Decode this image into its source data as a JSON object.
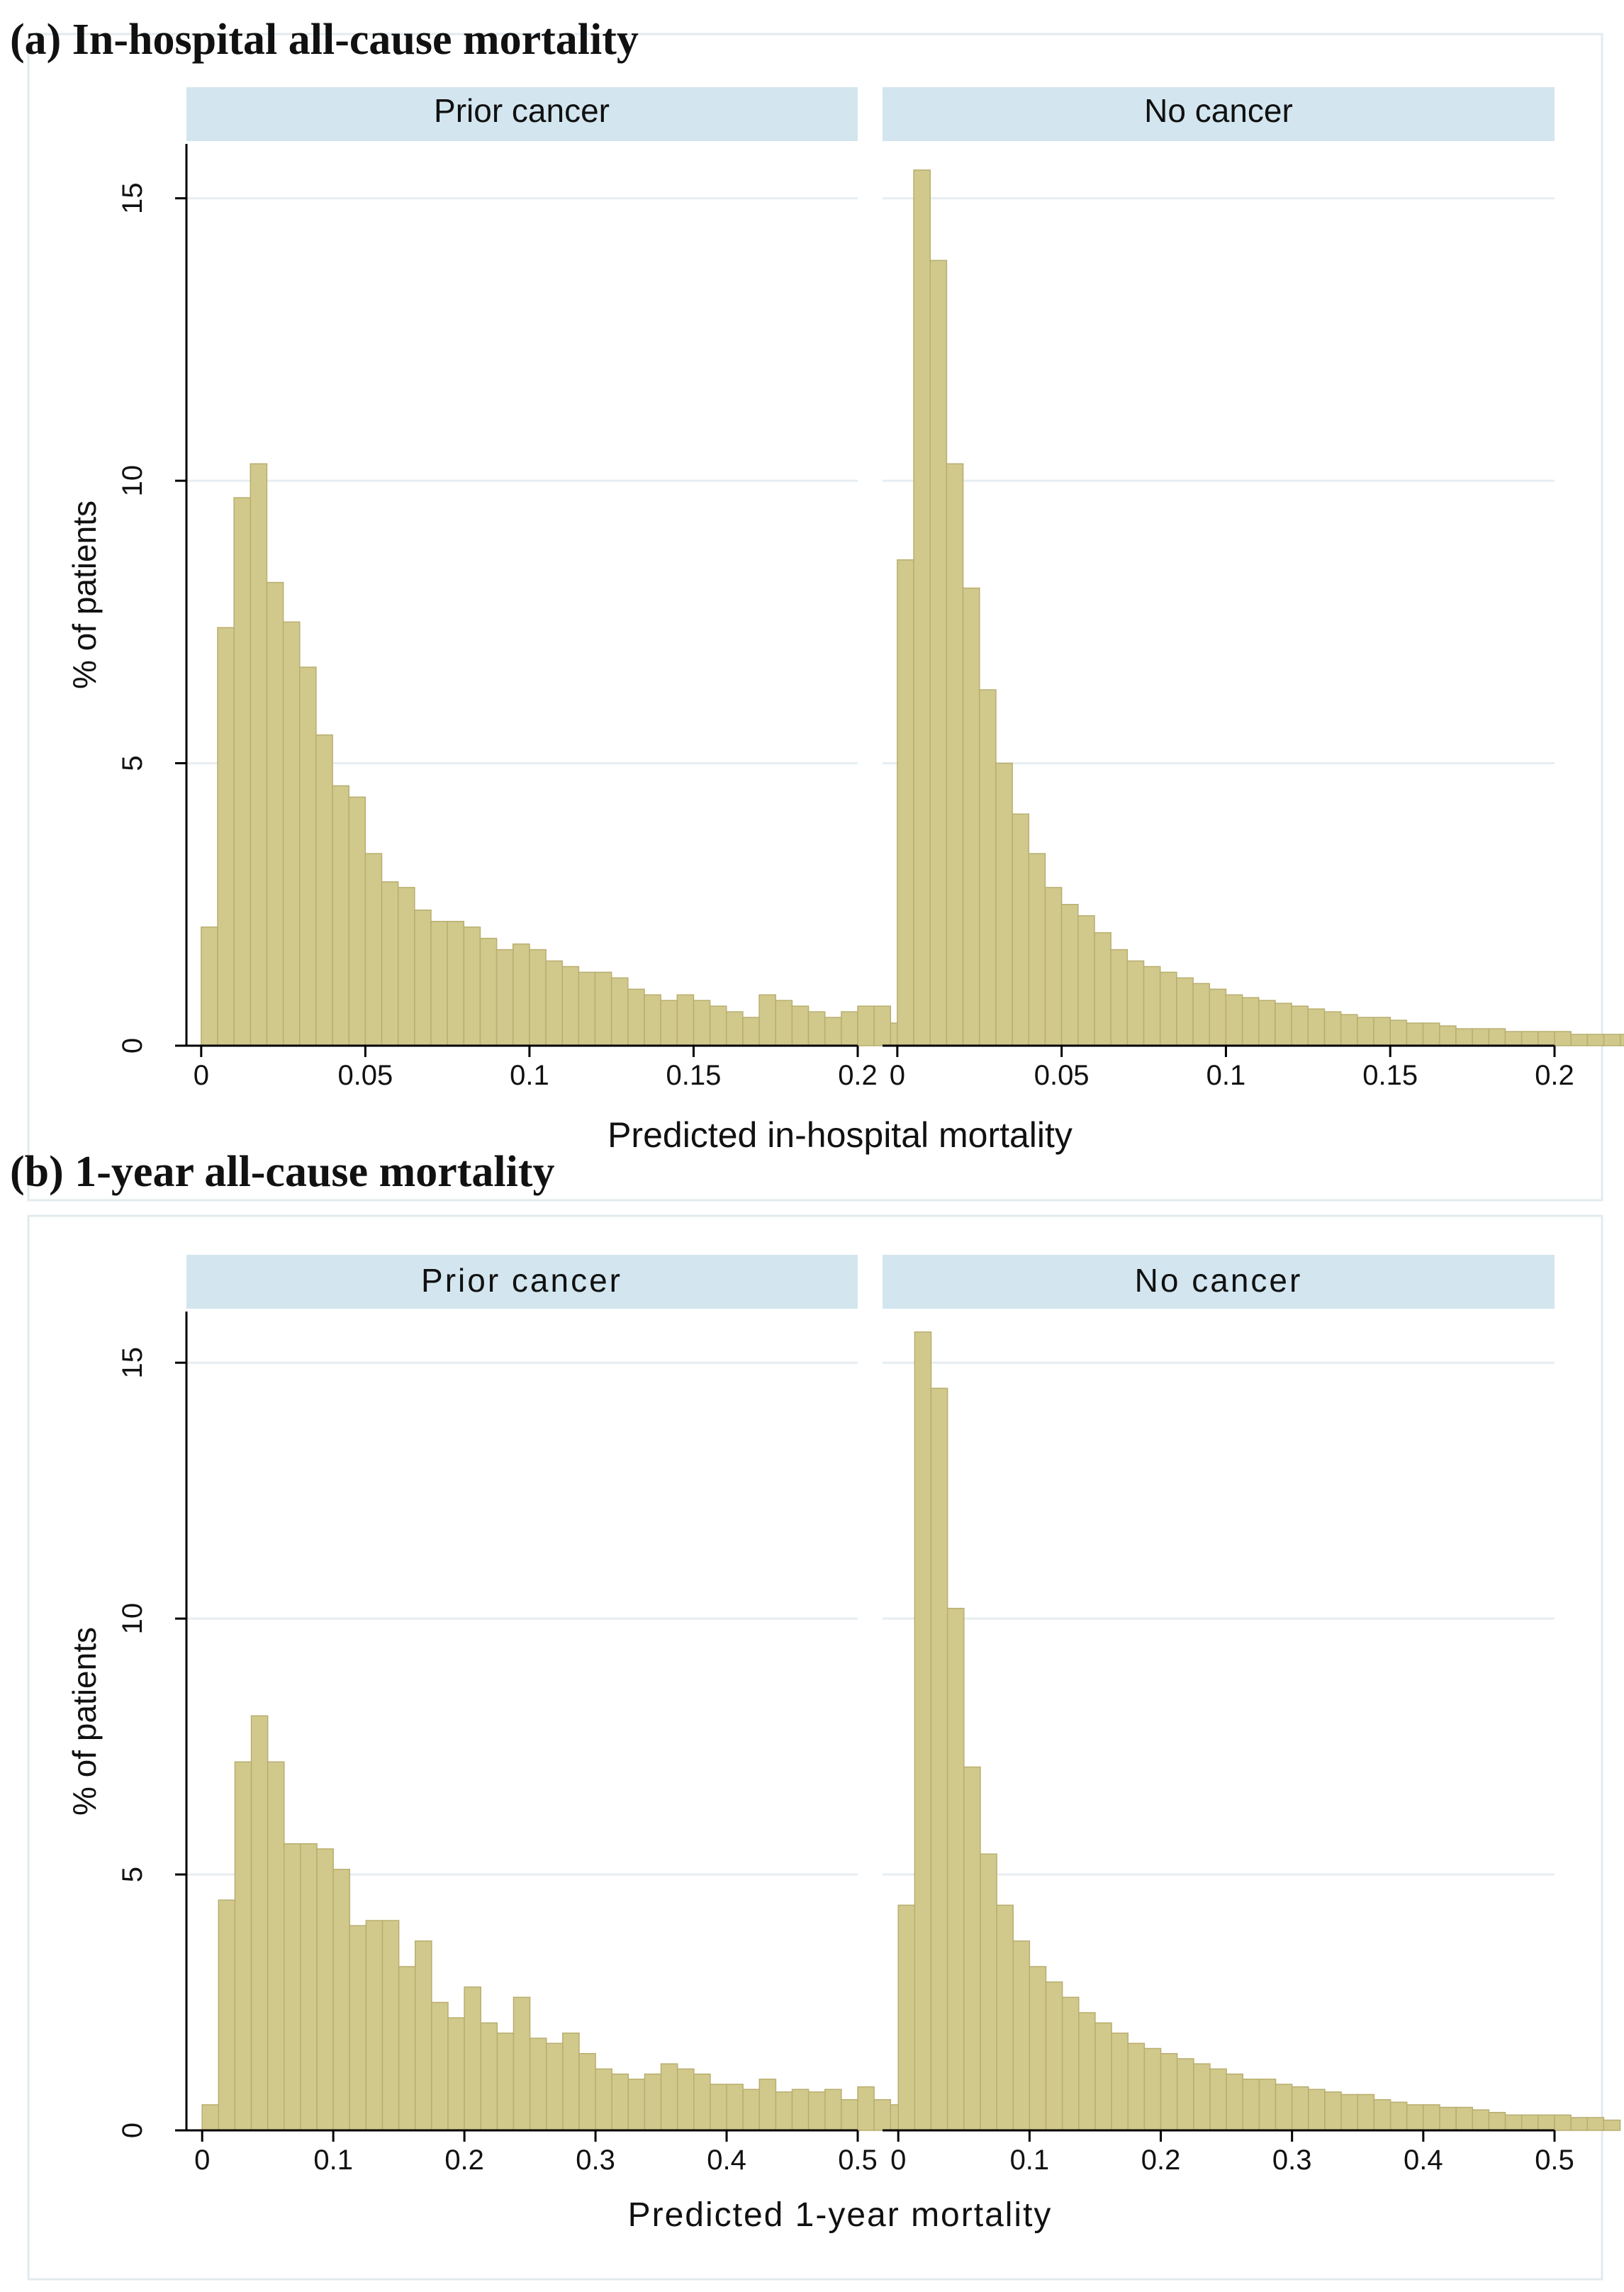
{
  "colors": {
    "bar_fill": "#D1C88C",
    "bar_stroke": "#B8AE6E",
    "strip_fill": "#D3E6EF",
    "grid": "#E6EEF2",
    "axis": "#000000",
    "frame": "#E3EAEE"
  },
  "chart_data": [
    {
      "type": "bar",
      "title": "(a) In-hospital all-cause mortality",
      "xlabel": "Predicted in-hospital mortality",
      "ylabel": "% of patients",
      "xlim": [
        -0.0045,
        0.2
      ],
      "ylim": [
        0,
        16
      ],
      "xticks": [
        0,
        0.05,
        0.1,
        0.15,
        0.2
      ],
      "xtick_labels": [
        "0",
        "0.05",
        "0.1",
        "0.15",
        "0.2"
      ],
      "yticks": [
        0,
        5,
        10,
        15
      ],
      "ytick_labels": [
        "0",
        "5",
        "10",
        "15"
      ],
      "bin_width": 0.005,
      "grid": true,
      "panels": [
        {
          "name": "Prior cancer",
          "values": [
            2.1,
            7.4,
            9.7,
            10.3,
            8.2,
            7.5,
            6.7,
            5.5,
            4.6,
            4.4,
            3.4,
            2.9,
            2.8,
            2.4,
            2.2,
            2.2,
            2.1,
            1.9,
            1.7,
            1.8,
            1.7,
            1.5,
            1.4,
            1.3,
            1.3,
            1.2,
            1.0,
            0.9,
            0.8,
            0.9,
            0.8,
            0.7,
            0.6,
            0.5,
            0.9,
            0.8,
            0.7,
            0.6,
            0.5,
            0.6,
            0.7,
            0.7,
            0.4,
            0.6,
            0.3,
            0.3,
            0.2,
            0.2,
            0.35
          ]
        },
        {
          "name": "No cancer",
          "values": [
            8.6,
            15.5,
            13.9,
            10.3,
            8.1,
            6.3,
            5.0,
            4.1,
            3.4,
            2.8,
            2.5,
            2.3,
            2.0,
            1.7,
            1.5,
            1.4,
            1.3,
            1.2,
            1.1,
            1.0,
            0.9,
            0.85,
            0.8,
            0.75,
            0.7,
            0.65,
            0.6,
            0.55,
            0.5,
            0.5,
            0.45,
            0.4,
            0.4,
            0.35,
            0.3,
            0.3,
            0.3,
            0.25,
            0.25,
            0.25,
            0.25,
            0.2,
            0.2,
            0.2,
            0.2,
            0.15,
            0.1,
            0.1,
            0.1,
            0.1
          ]
        }
      ]
    },
    {
      "type": "bar",
      "title": "(b) 1-year all-cause mortality",
      "xlabel": "Predicted 1-year mortality",
      "ylabel": "% of patients",
      "xlim": [
        -0.012,
        0.5
      ],
      "ylim": [
        0,
        16
      ],
      "xticks": [
        0,
        0.1,
        0.2,
        0.3,
        0.4,
        0.5
      ],
      "xtick_labels": [
        "0",
        "0.1",
        "0.2",
        "0.3",
        "0.4",
        "0.5"
      ],
      "yticks": [
        0,
        5,
        10,
        15
      ],
      "ytick_labels": [
        "0",
        "5",
        "10",
        "15"
      ],
      "bin_width": 0.0125,
      "grid": true,
      "panels": [
        {
          "name": "Prior cancer",
          "values": [
            0.5,
            4.5,
            7.2,
            8.1,
            7.2,
            5.6,
            5.6,
            5.5,
            5.1,
            4.0,
            4.1,
            4.1,
            3.2,
            3.7,
            2.5,
            2.2,
            2.8,
            2.1,
            1.9,
            2.6,
            1.8,
            1.7,
            1.9,
            1.5,
            1.2,
            1.1,
            1.0,
            1.1,
            1.3,
            1.2,
            1.1,
            0.9,
            0.9,
            0.8,
            1.0,
            0.75,
            0.8,
            0.75,
            0.8,
            0.6,
            0.85,
            0.6,
            0.5,
            0.2
          ]
        },
        {
          "name": "No cancer",
          "values": [
            4.4,
            15.6,
            14.5,
            10.2,
            7.1,
            5.4,
            4.4,
            3.7,
            3.2,
            2.9,
            2.6,
            2.3,
            2.1,
            1.9,
            1.7,
            1.6,
            1.5,
            1.4,
            1.3,
            1.2,
            1.1,
            1.0,
            1.0,
            0.9,
            0.85,
            0.8,
            0.75,
            0.7,
            0.7,
            0.6,
            0.55,
            0.5,
            0.5,
            0.45,
            0.45,
            0.4,
            0.35,
            0.3,
            0.3,
            0.3,
            0.3,
            0.25,
            0.25,
            0.2
          ]
        }
      ]
    }
  ]
}
